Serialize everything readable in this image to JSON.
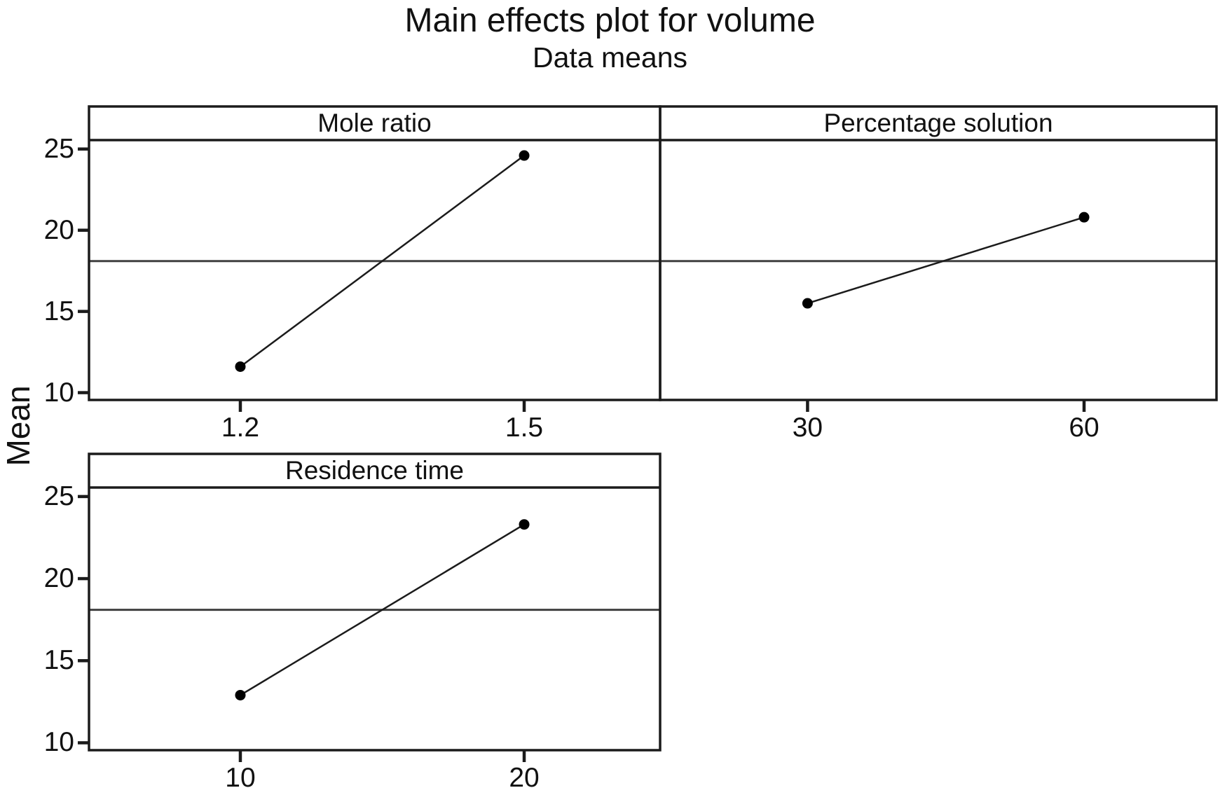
{
  "title": "Main effects plot for volume",
  "subtitle": "Data means",
  "chart_data": {
    "type": "line",
    "title": "Main effects plot for volume",
    "subtitle": "Data means",
    "ylabel": "Mean",
    "yticks": [
      10,
      15,
      20,
      25
    ],
    "ylim": [
      9.55,
      25.55
    ],
    "grand_mean": 18.1,
    "grid": false,
    "legend": "none",
    "marker": "filled-circle",
    "panels": [
      {
        "factor": "Mole ratio",
        "levels": [
          "1.2",
          "1.5"
        ],
        "means": [
          11.6,
          24.6
        ]
      },
      {
        "factor": "Percentage solution",
        "levels": [
          "30",
          "60"
        ],
        "means": [
          15.5,
          20.8
        ]
      },
      {
        "factor": "Residence time",
        "levels": [
          "10",
          "20"
        ],
        "means": [
          12.9,
          23.3
        ]
      }
    ],
    "colors": {
      "stroke": "#1b1b1b",
      "mean_line": "#404040",
      "point": "#000000",
      "background": "#ffffff"
    }
  }
}
